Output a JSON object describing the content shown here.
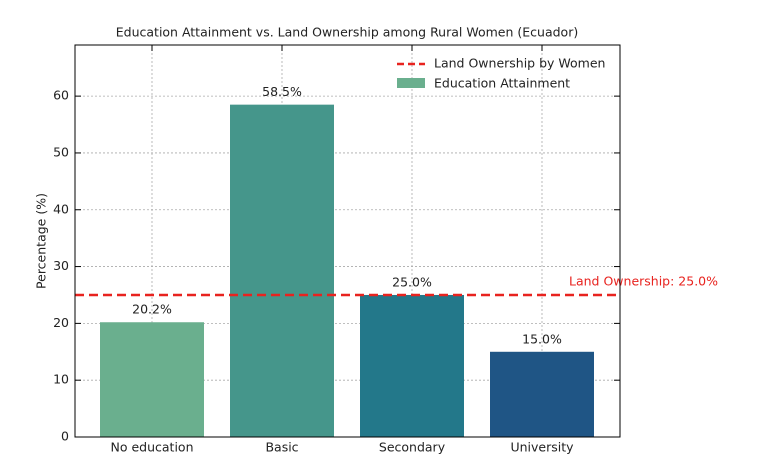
{
  "chart_data": {
    "type": "bar",
    "title": "Education Attainment vs. Land Ownership among Rural Women (Ecuador)",
    "y_label": "Percentage (%)",
    "categories": [
      "No education",
      "Basic",
      "Secondary",
      "University"
    ],
    "series": [
      {
        "name": "Education Attainment",
        "values": [
          20.2,
          58.5,
          25.0,
          15.0
        ],
        "value_labels": [
          "20.2%",
          "58.5%",
          "25.0%",
          "15.0%"
        ],
        "colors": [
          "#6aaf8e",
          "#45968b",
          "#23788a",
          "#1f5585"
        ]
      }
    ],
    "reference_line": {
      "name": "Land Ownership by Women",
      "value": 25,
      "color": "#e8231f",
      "label": "Land Ownership: 25.0%"
    },
    "ylim": [
      0,
      69
    ],
    "yticks": [
      0,
      10,
      20,
      30,
      40,
      50,
      60
    ],
    "grid": true,
    "legend": "upper right"
  }
}
